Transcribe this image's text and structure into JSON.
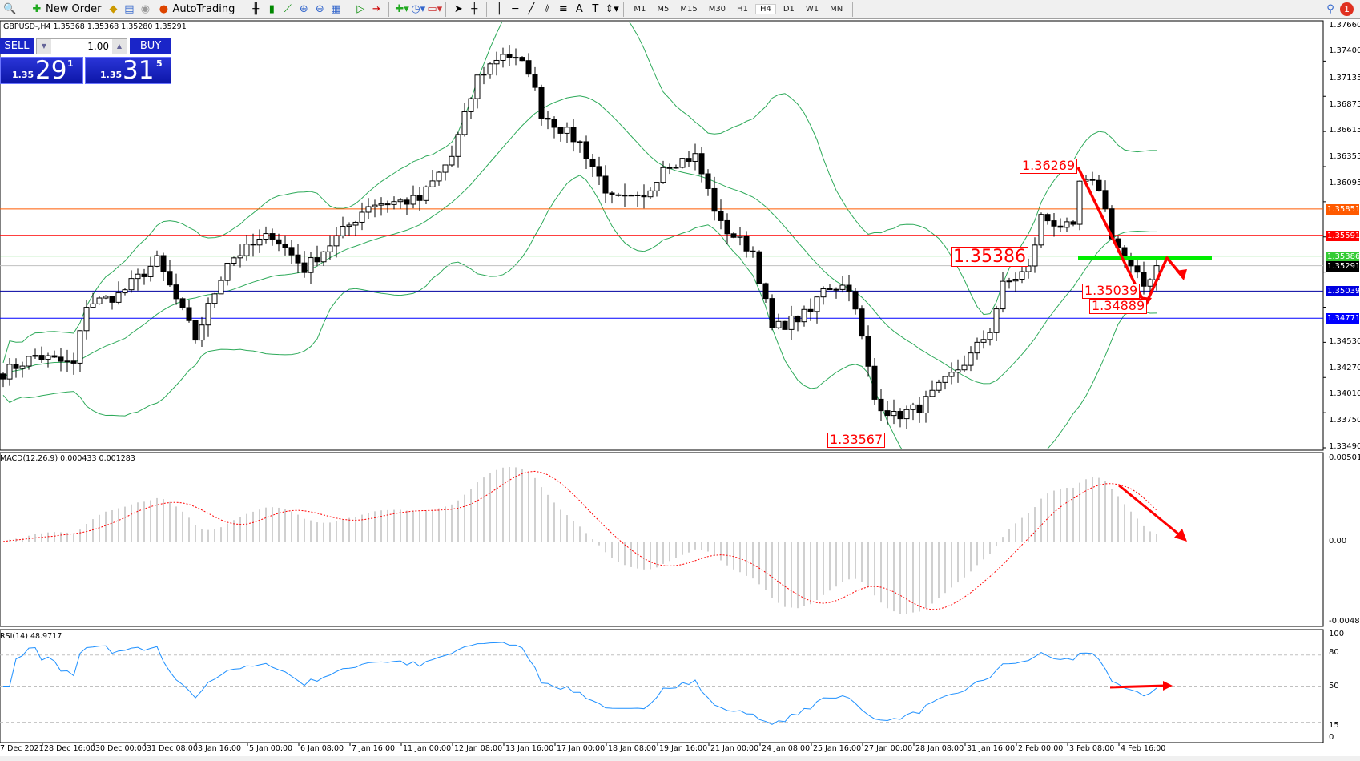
{
  "toolbar": {
    "new_order": "New Order",
    "autotrading": "AutoTrading",
    "timeframes": [
      "M1",
      "M5",
      "M15",
      "M30",
      "H1",
      "H4",
      "D1",
      "W1",
      "MN"
    ],
    "active_timeframe": "H4",
    "notification_count": "1"
  },
  "chart_header": "GBPUSD-,H4  1.35368 1.35368 1.35280 1.35291",
  "trade_panel": {
    "sell": "SELL",
    "buy": "BUY",
    "lot": "1.00",
    "sell_prefix": "1.35",
    "sell_big": "29",
    "sell_sup": "1",
    "buy_prefix": "1.35",
    "buy_big": "31",
    "buy_sup": "5"
  },
  "price_axis": [
    "1.37660",
    "1.37400",
    "1.37135",
    "1.36875",
    "1.36615",
    "1.36355",
    "1.36095",
    "1.34530",
    "1.34270",
    "1.34010",
    "1.33750",
    "1.33490"
  ],
  "levels": [
    {
      "price": "1.35851",
      "color": "#ff5a00"
    },
    {
      "price": "1.35591",
      "color": "#ff0000"
    },
    {
      "price": "1.35386",
      "color": "#33cc33"
    },
    {
      "price": "1.35291",
      "color": "#000000",
      "line": "#c0c0c0"
    },
    {
      "price": "1.35039",
      "color": "#0000e0",
      "line": "#0000a0"
    },
    {
      "price": "1.34771",
      "color": "#0000ff"
    }
  ],
  "annotations": [
    "1.36269",
    "1.35386",
    "1.35039",
    "1.34889",
    "1.33567"
  ],
  "macd": {
    "label": "MACD(12,26,9) 0.000433 0.001283",
    "max": "0.005014",
    "zero": "0.00",
    "min": "-0.004812"
  },
  "rsi": {
    "label": "RSI(14) 48.9717",
    "levels": [
      "100",
      "80",
      "50",
      "15",
      "0"
    ]
  },
  "dates": [
    "7 Dec 2021",
    "28 Dec 16:00",
    "30 Dec 00:00",
    "31 Dec 08:00",
    "3 Jan 16:00",
    "5 Jan 00:00",
    "6 Jan 08:00",
    "7 Jan 16:00",
    "11 Jan 00:00",
    "12 Jan 08:00",
    "13 Jan 16:00",
    "17 Jan 00:00",
    "18 Jan 08:00",
    "19 Jan 16:00",
    "21 Jan 00:00",
    "24 Jan 08:00",
    "25 Jan 16:00",
    "27 Jan 00:00",
    "28 Jan 08:00",
    "31 Jan 16:00",
    "2 Feb 00:00",
    "3 Feb 08:00",
    "4 Feb 16:00"
  ],
  "colors": {
    "bull_fill": "#ffffff",
    "bear_fill": "#000000",
    "bands": "#2eaa5a",
    "macd_hist": "#c0c0c0",
    "macd_signal": "#ff0000",
    "rsi": "#1e90ff",
    "annotation": "#ff0000"
  },
  "chart_data": {
    "type": "candlestick",
    "symbol": "GBPUSD",
    "timeframe": "H4",
    "ylim": [
      1.3349,
      1.3766
    ],
    "close_keypoints": [
      [
        0,
        1.3423
      ],
      [
        5,
        1.344
      ],
      [
        11,
        1.3431
      ],
      [
        13,
        1.3491
      ],
      [
        18,
        1.35
      ],
      [
        24,
        1.3534
      ],
      [
        30,
        1.3457
      ],
      [
        35,
        1.3534
      ],
      [
        42,
        1.356
      ],
      [
        47,
        1.3526
      ],
      [
        54,
        1.3569
      ],
      [
        57,
        1.359
      ],
      [
        65,
        1.3594
      ],
      [
        70,
        1.3637
      ],
      [
        74,
        1.3715
      ],
      [
        78,
        1.374
      ],
      [
        82,
        1.3723
      ],
      [
        84,
        1.368
      ],
      [
        90,
        1.365
      ],
      [
        95,
        1.3594
      ],
      [
        100,
        1.3594
      ],
      [
        103,
        1.3629
      ],
      [
        108,
        1.3637
      ],
      [
        112,
        1.3569
      ],
      [
        117,
        1.3543
      ],
      [
        120,
        1.3466
      ],
      [
        126,
        1.3483
      ],
      [
        128,
        1.3509
      ],
      [
        132,
        1.3509
      ],
      [
        134,
        1.3457
      ],
      [
        136,
        1.3397
      ],
      [
        139,
        1.338
      ],
      [
        143,
        1.3389
      ],
      [
        147,
        1.3414
      ],
      [
        151,
        1.344
      ],
      [
        154,
        1.3466
      ],
      [
        156,
        1.3509
      ],
      [
        160,
        1.3526
      ],
      [
        162,
        1.3577
      ],
      [
        167,
        1.3564
      ],
      [
        168,
        1.3611
      ],
      [
        171,
        1.3607
      ],
      [
        173,
        1.356
      ],
      [
        175,
        1.3534
      ],
      [
        178,
        1.3509
      ],
      [
        180,
        1.3529
      ]
    ],
    "indicators": [
      "Bollinger Bands(20,2)",
      "MACD(12,26,9)",
      "RSI(14)"
    ]
  }
}
